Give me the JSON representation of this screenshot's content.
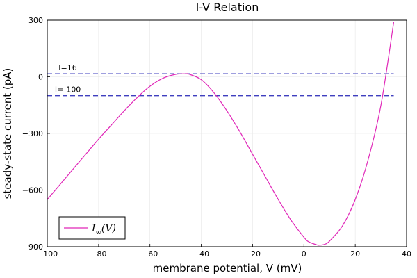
{
  "chart_data": {
    "type": "line",
    "title": "I-V Relation",
    "xlabel": "membrane potential, V (mV)",
    "ylabel": "steady-state current (pA)",
    "xlim": [
      -100,
      40
    ],
    "ylim": [
      -900,
      300
    ],
    "xticks": [
      -100,
      -80,
      -60,
      -40,
      -20,
      0,
      20,
      40
    ],
    "xtick_labels": [
      "−100",
      "−80",
      "−60",
      "−40",
      "−20",
      "0",
      "20",
      "40"
    ],
    "yticks": [
      -900,
      -600,
      -300,
      0,
      300
    ],
    "ytick_labels": [
      "−900",
      "−600",
      "−300",
      "0",
      "300"
    ],
    "grid": true,
    "series": [
      {
        "name": "I∞(V)",
        "legend_main": "I",
        "legend_sub": "∞",
        "legend_arg": "(V)",
        "color": "#e026b8",
        "x": [
          -100,
          -95,
          -90,
          -85,
          -80,
          -75,
          -70,
          -65,
          -60,
          -55,
          -50,
          -46,
          -45,
          -40,
          -35,
          -30,
          -25,
          -20,
          -15,
          -10,
          -5,
          0,
          2,
          5,
          6,
          8,
          10,
          15,
          20,
          25,
          30,
          35
        ],
        "y": [
          -650,
          -570,
          -490,
          -410,
          -330,
          -255,
          -180,
          -110,
          -50,
          -8,
          13,
          16,
          15,
          -15,
          -85,
          -180,
          -290,
          -410,
          -530,
          -650,
          -760,
          -850,
          -875,
          -890,
          -892,
          -888,
          -870,
          -790,
          -650,
          -440,
          -150,
          290
        ]
      }
    ],
    "hlines": [
      {
        "y": 16,
        "label": "I=16",
        "color": "#3f3fbf",
        "x_from": -100,
        "x_to": 35
      },
      {
        "y": -100,
        "label": "I=-100",
        "color": "#3f3fbf",
        "x_from": -100,
        "x_to": 35
      }
    ],
    "legend_position": "bottom-left"
  }
}
